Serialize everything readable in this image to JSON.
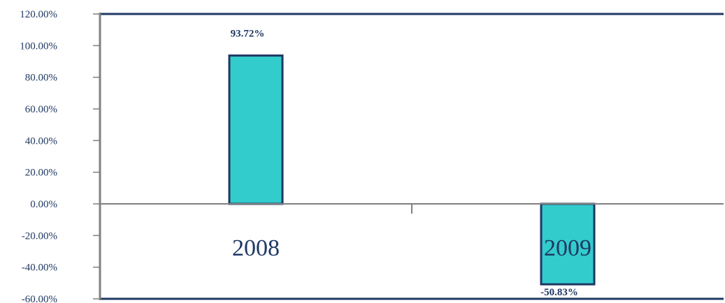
{
  "chart_data": {
    "type": "bar",
    "categories": [
      "2008",
      "2009"
    ],
    "values": [
      93.72,
      -50.83
    ],
    "data_labels": [
      "93.72%",
      "-50.83%"
    ],
    "title": "",
    "xlabel": "",
    "ylabel": "",
    "ylim": [
      -60,
      120
    ],
    "yticks": [
      120,
      100,
      80,
      60,
      40,
      20,
      0,
      -20,
      -40,
      -60
    ],
    "ytick_labels": [
      "120.00%",
      "100.00%",
      "80.00%",
      "60.00%",
      "40.00%",
      "20.00%",
      "0.00%",
      "-20.00%",
      "-40.00%",
      "-60.00%"
    ],
    "grid": false,
    "legend": "none",
    "colors": {
      "bar_fill": "#33cccc",
      "bar_stroke": "#1f3864",
      "axis": "#808080",
      "frame": "#1f3864",
      "text": "#1f3864"
    }
  }
}
